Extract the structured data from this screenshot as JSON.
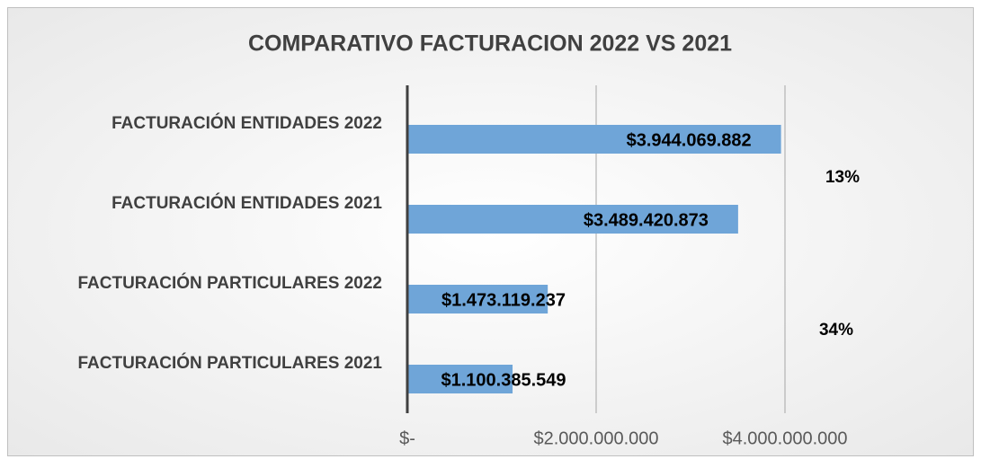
{
  "chart_data": {
    "type": "barh",
    "title": "COMPARATIVO FACTURACION 2022 VS 2021",
    "categories": [
      "FACTURACIÓN ENTIDADES 2022",
      "FACTURACIÓN ENTIDADES 2021",
      "FACTURACIÓN PARTICULARES 2022",
      "FACTURACIÓN PARTICULARES 2021"
    ],
    "values": [
      3944069882,
      3489420873,
      1473119237,
      1100385549
    ],
    "value_labels": [
      "$3.944.069.882",
      "$3.489.420.873",
      "$1.473.119.237",
      "$1.100.385.549"
    ],
    "color": "#6fa5d8",
    "xlim": [
      0,
      4000000000
    ],
    "xticks": [
      {
        "value": 0,
        "label": "$-"
      },
      {
        "value": 2000000000,
        "label": "$2.000.000.000"
      },
      {
        "value": 4000000000,
        "label": "$4.000.000.000"
      }
    ],
    "grid": true,
    "annotations": [
      "13%",
      "34%"
    ]
  }
}
